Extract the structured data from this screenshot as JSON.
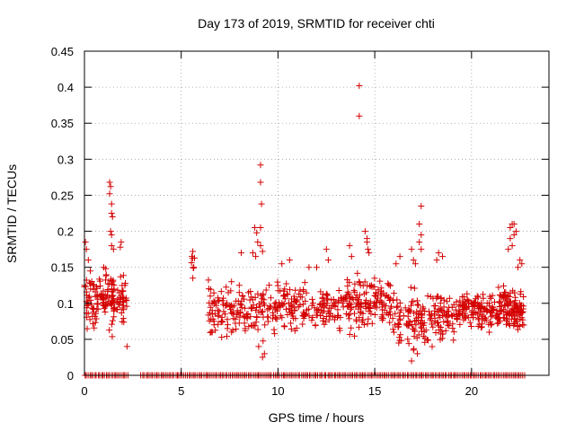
{
  "chart_data": {
    "type": "scatter",
    "title": "Day 173 of 2019, SRMTID for receiver chti",
    "xlabel": "GPS time / hours",
    "ylabel": "SRMTID / TECUs",
    "xlim": [
      0,
      24
    ],
    "ylim": [
      0,
      0.45
    ],
    "xticks": [
      0,
      5,
      10,
      15,
      20
    ],
    "yticks": [
      0,
      0.05,
      0.1,
      0.15,
      0.2,
      0.25,
      0.3,
      0.35,
      0.4,
      0.45
    ],
    "xtick_labels": [
      "0",
      "5",
      "10",
      "15",
      "20"
    ],
    "ytick_labels": [
      "0",
      "0.05",
      "0.1",
      "0.15",
      "0.2",
      "0.25",
      "0.3",
      "0.35",
      "0.4",
      "0.45"
    ],
    "grid": true,
    "marker": "+",
    "color": "#d40000",
    "series": [
      {
        "name": "SRMTID",
        "clusters": [
          {
            "x": [
              0.0,
              2.2
            ],
            "y": [
              0.05,
              0.16
            ],
            "n": 150
          },
          {
            "x": [
              5.5,
              5.7
            ],
            "y": [
              0.13,
              0.17
            ],
            "n": 5
          },
          {
            "x": [
              6.4,
              9.9
            ],
            "y": [
              0.04,
              0.14
            ],
            "n": 150
          },
          {
            "x": [
              9.9,
              13.5
            ],
            "y": [
              0.05,
              0.14
            ],
            "n": 160
          },
          {
            "x": [
              13.5,
              15.9
            ],
            "y": [
              0.05,
              0.15
            ],
            "n": 140
          },
          {
            "x": [
              15.9,
              19.2
            ],
            "y": [
              0.03,
              0.13
            ],
            "n": 170
          },
          {
            "x": [
              19.2,
              22.7
            ],
            "y": [
              0.05,
              0.13
            ],
            "n": 260
          }
        ],
        "points": [
          [
            0.05,
            0.185
          ],
          [
            0.1,
            0.175
          ],
          [
            0.2,
            0.16
          ],
          [
            0.3,
            0.145
          ],
          [
            1.3,
            0.268
          ],
          [
            1.35,
            0.262
          ],
          [
            1.3,
            0.252
          ],
          [
            1.4,
            0.238
          ],
          [
            1.4,
            0.225
          ],
          [
            1.45,
            0.22
          ],
          [
            1.35,
            0.2
          ],
          [
            1.4,
            0.195
          ],
          [
            1.4,
            0.18
          ],
          [
            1.5,
            0.175
          ],
          [
            1.9,
            0.185
          ],
          [
            1.85,
            0.178
          ],
          [
            2.2,
            0.04
          ],
          [
            1.0,
            0.15
          ],
          [
            1.1,
            0.148
          ],
          [
            5.6,
            0.172
          ],
          [
            5.55,
            0.165
          ],
          [
            5.65,
            0.15
          ],
          [
            5.6,
            0.135
          ],
          [
            7.6,
            0.13
          ],
          [
            8.0,
            0.125
          ],
          [
            8.0,
            0.115
          ],
          [
            8.1,
            0.17
          ],
          [
            7.8,
            0.078
          ],
          [
            7.6,
            0.06
          ],
          [
            6.5,
            0.11
          ],
          [
            6.6,
            0.09
          ],
          [
            6.7,
            0.07
          ],
          [
            6.6,
            0.06
          ],
          [
            7.5,
            0.095
          ],
          [
            7.9,
            0.09
          ],
          [
            8.3,
            0.065
          ],
          [
            8.8,
            0.205
          ],
          [
            8.9,
            0.198
          ],
          [
            8.95,
            0.185
          ],
          [
            8.85,
            0.165
          ],
          [
            8.7,
            0.17
          ],
          [
            9.1,
            0.292
          ],
          [
            9.1,
            0.268
          ],
          [
            9.15,
            0.238
          ],
          [
            9.1,
            0.205
          ],
          [
            9.1,
            0.18
          ],
          [
            9.2,
            0.172
          ],
          [
            9.0,
            0.04
          ],
          [
            9.2,
            0.025
          ],
          [
            9.3,
            0.03
          ],
          [
            14.2,
            0.402
          ],
          [
            14.2,
            0.36
          ],
          [
            14.5,
            0.2
          ],
          [
            14.6,
            0.19
          ],
          [
            14.6,
            0.185
          ],
          [
            14.65,
            0.175
          ],
          [
            14.7,
            0.17
          ],
          [
            13.7,
            0.18
          ],
          [
            13.8,
            0.165
          ],
          [
            12.5,
            0.175
          ],
          [
            12.6,
            0.16
          ],
          [
            17.4,
            0.235
          ],
          [
            17.3,
            0.21
          ],
          [
            17.4,
            0.195
          ],
          [
            17.3,
            0.185
          ],
          [
            16.9,
            0.175
          ],
          [
            17.0,
            0.16
          ],
          [
            17.1,
            0.155
          ],
          [
            17.4,
            0.175
          ],
          [
            16.3,
            0.165
          ],
          [
            18.3,
            0.17
          ],
          [
            18.5,
            0.165
          ],
          [
            18.2,
            0.16
          ],
          [
            16.1,
            0.155
          ],
          [
            17.2,
            0.03
          ],
          [
            16.9,
            0.02
          ],
          [
            17.0,
            0.035
          ],
          [
            22.1,
            0.21
          ],
          [
            22.2,
            0.21
          ],
          [
            22.0,
            0.205
          ],
          [
            22.3,
            0.2
          ],
          [
            22.2,
            0.195
          ],
          [
            22.0,
            0.19
          ],
          [
            22.1,
            0.18
          ],
          [
            21.9,
            0.175
          ],
          [
            22.5,
            0.16
          ],
          [
            22.6,
            0.155
          ],
          [
            22.4,
            0.15
          ],
          [
            10.6,
            0.16
          ],
          [
            11.6,
            0.15
          ],
          [
            12.0,
            0.15
          ],
          [
            10.2,
            0.155
          ]
        ],
        "zero_points": {
          "ranges": [
            [
              0.0,
              2.3
            ],
            [
              2.9,
              22.8
            ]
          ],
          "n": 260,
          "y": 0
        }
      }
    ]
  }
}
